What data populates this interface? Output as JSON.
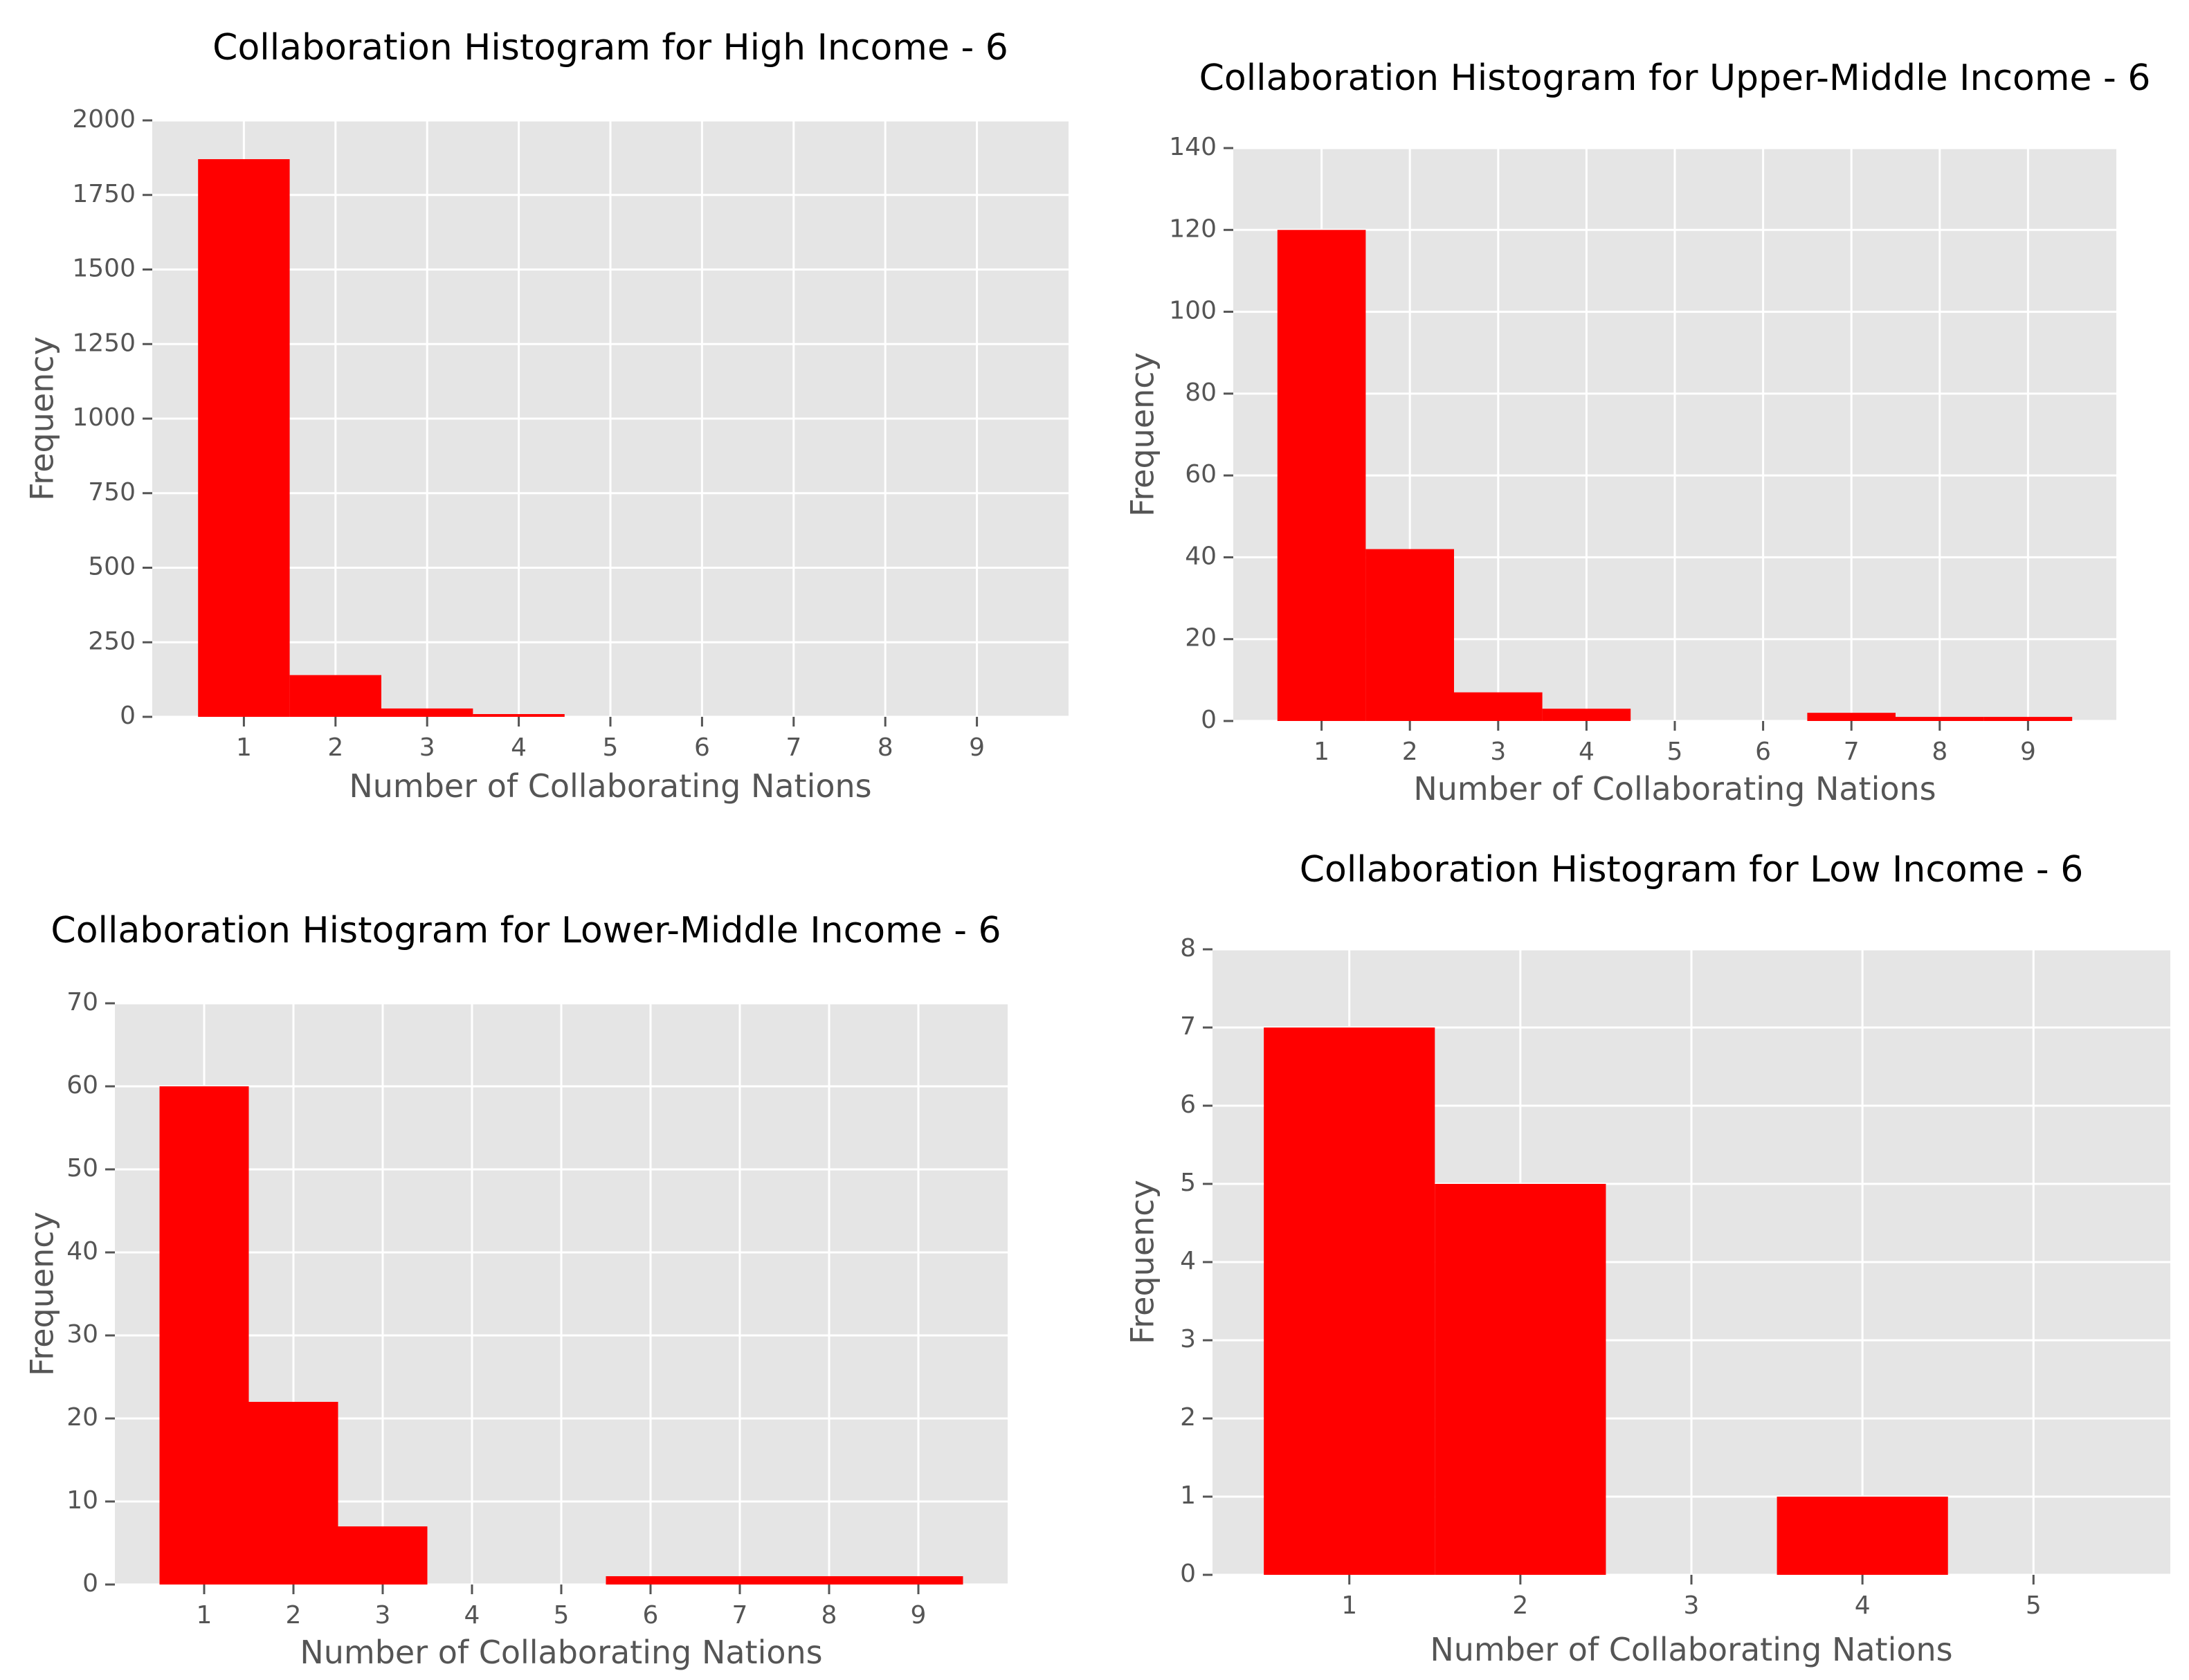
{
  "figure": {
    "background": "#ffffff",
    "panel_color": "#e5e5e5",
    "grid_color": "#ffffff",
    "bar_color": "#ff0000",
    "text_color": "#555555"
  },
  "chart_data": [
    {
      "type": "bar",
      "histogram": true,
      "title": "Collaboration Histogram for High Income - 6",
      "xlabel": "Number of Collaborating Nations",
      "ylabel": "Frequency",
      "categories": [
        1,
        2,
        3,
        4,
        5,
        6,
        7,
        8,
        9
      ],
      "x_ticks": [
        "1",
        "2",
        "3",
        "4",
        "5",
        "6",
        "7",
        "8",
        "9"
      ],
      "y_ticks": [
        "0",
        "250",
        "500",
        "750",
        "1000",
        "1250",
        "1500",
        "1750",
        "2000"
      ],
      "values": [
        1870,
        140,
        28,
        5,
        0,
        0,
        0,
        0,
        0
      ],
      "xlim": [
        0,
        10
      ],
      "ylim": [
        0,
        2000
      ],
      "grid": true,
      "legend": false
    },
    {
      "type": "bar",
      "histogram": true,
      "title": "Collaboration Histogram for Upper-Middle Income - 6",
      "xlabel": "Number of Collaborating Nations",
      "ylabel": "Frequency",
      "categories": [
        1,
        2,
        3,
        4,
        5,
        6,
        7,
        8,
        9
      ],
      "x_ticks": [
        "1",
        "2",
        "3",
        "4",
        "5",
        "6",
        "7",
        "8",
        "9"
      ],
      "y_ticks": [
        "0",
        "20",
        "40",
        "60",
        "80",
        "100",
        "120",
        "140"
      ],
      "values": [
        120,
        42,
        7,
        3,
        0,
        0,
        2,
        1,
        1
      ],
      "xlim": [
        0,
        10
      ],
      "ylim": [
        0,
        140
      ],
      "grid": true,
      "legend": false
    },
    {
      "type": "bar",
      "histogram": true,
      "title": "Collaboration Histogram for Lower-Middle Income - 6",
      "xlabel": "Number of Collaborating Nations",
      "ylabel": "Frequency",
      "categories": [
        1,
        2,
        3,
        4,
        5,
        6,
        7,
        8,
        9
      ],
      "x_ticks": [
        "1",
        "2",
        "3",
        "4",
        "5",
        "6",
        "7",
        "8",
        "9"
      ],
      "y_ticks": [
        "0",
        "10",
        "20",
        "30",
        "40",
        "50",
        "60",
        "70"
      ],
      "values": [
        60,
        22,
        7,
        0,
        0,
        1,
        1,
        1,
        1
      ],
      "xlim": [
        0,
        10
      ],
      "ylim": [
        0,
        70
      ],
      "grid": true,
      "legend": false
    },
    {
      "type": "bar",
      "histogram": true,
      "title": "Collaboration Histogram for Low Income - 6",
      "xlabel": "Number of Collaborating Nations",
      "ylabel": "Frequency",
      "categories": [
        1,
        2,
        3,
        4,
        5
      ],
      "x_ticks": [
        "1",
        "2",
        "3",
        "4",
        "5"
      ],
      "y_ticks": [
        "0",
        "1",
        "2",
        "3",
        "4",
        "5",
        "6",
        "7",
        "8"
      ],
      "values": [
        7,
        5,
        0,
        1,
        0
      ],
      "xlim": [
        0.2,
        5.8
      ],
      "ylim": [
        0,
        8
      ],
      "grid": true,
      "legend": false
    }
  ]
}
